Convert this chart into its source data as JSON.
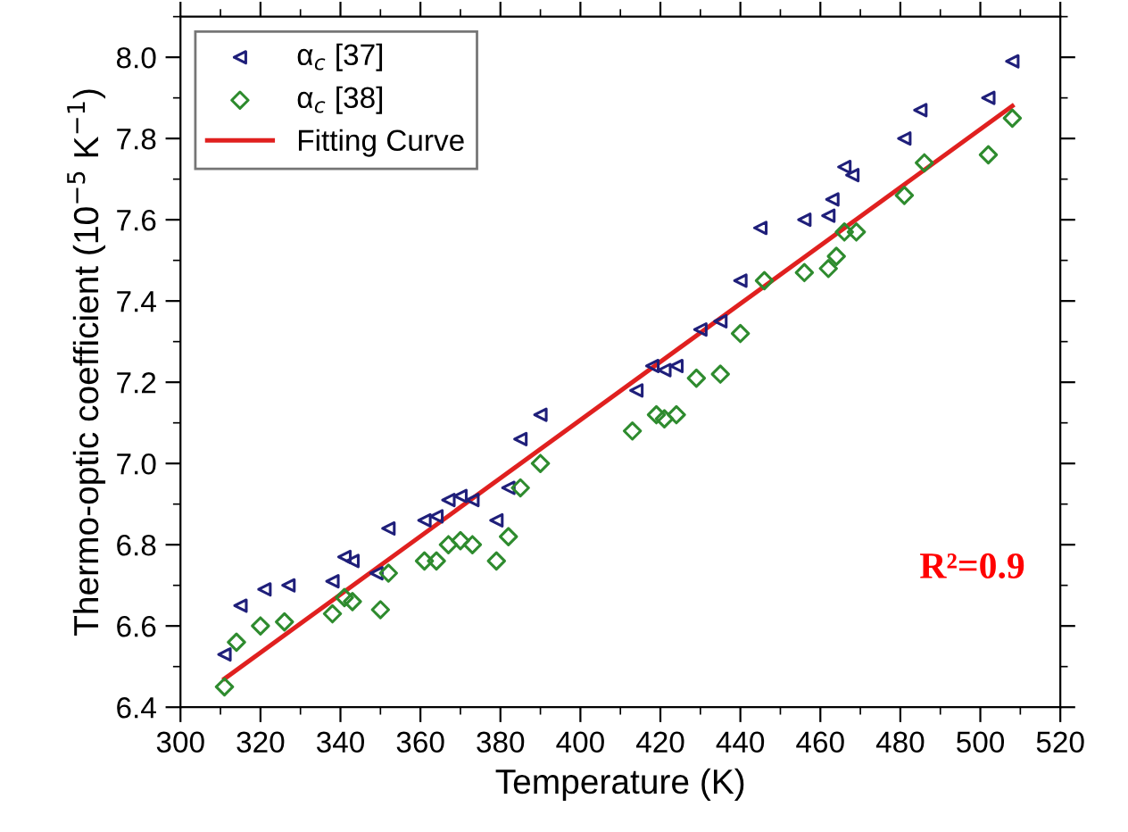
{
  "chart_data": {
    "type": "scatter",
    "xlabel": "Temperature (K)",
    "ylabel": "Thermo-optic coefficient (10$^{−5}$ K$^{−1}$)",
    "xlim": [
      300,
      520
    ],
    "xticks": [
      300,
      320,
      340,
      360,
      380,
      400,
      420,
      440,
      460,
      480,
      500,
      520
    ],
    "ylim": [
      6.4,
      8.1
    ],
    "yticks": [
      {
        "value": 6.4,
        "label": "6.4"
      },
      {
        "value": 6.6,
        "label": "6.6"
      },
      {
        "value": 6.8,
        "label": "6.8"
      },
      {
        "value": 7.0,
        "label": "7.0"
      },
      {
        "value": 7.2,
        "label": "7.2"
      },
      {
        "value": 7.4,
        "label": "7.4"
      },
      {
        "value": 7.6,
        "label": "7.6"
      },
      {
        "value": 7.8,
        "label": "7.8"
      },
      {
        "value": 8.0,
        "label": "8.0"
      }
    ],
    "legend": "top left",
    "grid": false,
    "annotations": [
      "R²=0.9"
    ],
    "series": [
      {
        "name": "α$_{c}$ [37]",
        "color": "#1f1f7a",
        "marker": "triangle",
        "x": [
          311,
          315,
          321,
          327,
          338,
          341,
          343,
          349,
          352,
          361,
          364,
          367,
          370,
          373,
          379,
          382,
          385,
          390,
          414,
          418,
          421,
          424,
          430,
          435,
          440,
          445,
          456,
          462,
          463,
          466,
          468,
          481,
          485,
          502,
          508
        ],
        "values": [
          6.53,
          6.65,
          6.69,
          6.7,
          6.71,
          6.77,
          6.76,
          6.73,
          6.84,
          6.86,
          6.87,
          6.91,
          6.92,
          6.91,
          6.86,
          6.94,
          7.06,
          7.12,
          7.18,
          7.24,
          7.23,
          7.24,
          7.33,
          7.35,
          7.45,
          7.58,
          7.6,
          7.61,
          7.65,
          7.73,
          7.71,
          7.8,
          7.87,
          7.9,
          7.99
        ]
      },
      {
        "name": "α$_{c}$ [38]",
        "color": "#2e8b2e",
        "marker": "diamond",
        "x": [
          311,
          314,
          320,
          326,
          338,
          341,
          343,
          350,
          352,
          361,
          364,
          367,
          370,
          373,
          379,
          382,
          385,
          390,
          413,
          419,
          421,
          424,
          429,
          435,
          440,
          446,
          456,
          462,
          464,
          466,
          469,
          481,
          486,
          502,
          508
        ],
        "values": [
          6.45,
          6.56,
          6.6,
          6.61,
          6.63,
          6.67,
          6.66,
          6.64,
          6.73,
          6.76,
          6.76,
          6.8,
          6.81,
          6.8,
          6.76,
          6.82,
          6.94,
          7.0,
          7.08,
          7.12,
          7.11,
          7.12,
          7.21,
          7.22,
          7.32,
          7.45,
          7.47,
          7.48,
          7.51,
          7.57,
          7.57,
          7.66,
          7.74,
          7.76,
          7.85
        ]
      },
      {
        "name": "Fitting Curve",
        "color": "#e0201f",
        "type": "line",
        "marker": "none",
        "line_style": "solid",
        "x": [
          311,
          508
        ],
        "values": [
          6.47,
          7.88
        ]
      }
    ]
  }
}
